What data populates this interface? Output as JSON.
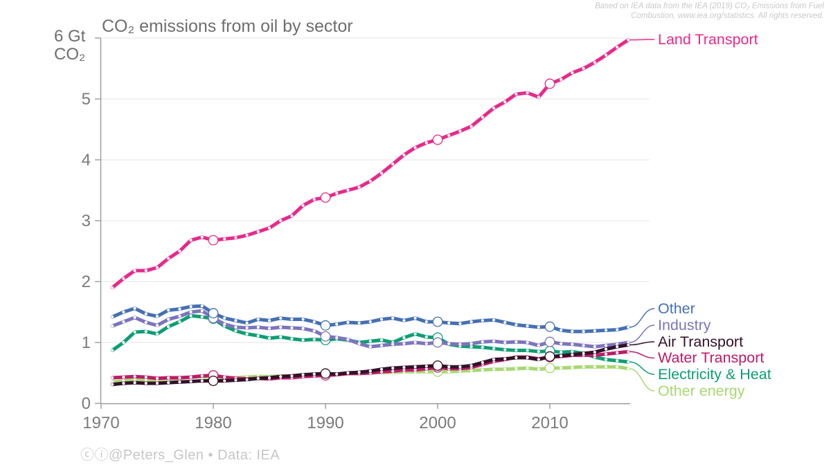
{
  "title": "CO₂ emissions from oil by sector",
  "y_axis": {
    "top_label_line1": "6 Gt",
    "top_label_line2": "CO₂"
  },
  "attribution": {
    "line1": "Based on IEA data from the IEA (2019) CO₂ Emissions from Fuel",
    "line2": "Combustion, www.iea.org/statistics. All rights reserved."
  },
  "credit": "ⓒⓘ@Peters_Glen  •  Data: IEA",
  "colors": {
    "title_text": "#6e6e6e",
    "tick_text": "#7a7a7a",
    "axis": "#999999",
    "grid": "#eaeaea",
    "attribution_text": "#c9c9c9",
    "credit_text": "#c6c6c6",
    "background": "#ffffff"
  },
  "chart_data": {
    "type": "line",
    "title": "CO₂ emissions from oil by sector",
    "ylabel": "Gt CO₂",
    "xlabel": "",
    "xlim": [
      1970,
      2017
    ],
    "ylim": [
      0,
      6
    ],
    "grid": "horizontal",
    "legend_position": "right-of-line-ends",
    "xticks": [
      1970,
      1980,
      1990,
      2000,
      2010
    ],
    "yticks": [
      0,
      1,
      2,
      3,
      4,
      5
    ],
    "grid_values": [
      1,
      2,
      3,
      4,
      5,
      6
    ],
    "marker_years": [
      1980,
      1990,
      2000,
      2010
    ],
    "x": [
      1971,
      1972,
      1973,
      1974,
      1975,
      1976,
      1977,
      1978,
      1979,
      1980,
      1981,
      1982,
      1983,
      1984,
      1985,
      1986,
      1987,
      1988,
      1989,
      1990,
      1991,
      1992,
      1993,
      1994,
      1995,
      1996,
      1997,
      1998,
      1999,
      2000,
      2001,
      2002,
      2003,
      2004,
      2005,
      2006,
      2007,
      2008,
      2009,
      2010,
      2011,
      2012,
      2013,
      2014,
      2015,
      2016,
      2017
    ],
    "series": [
      {
        "name": "Land Transport",
        "color": "#e62a8b",
        "values": [
          1.9,
          2.05,
          2.18,
          2.18,
          2.23,
          2.38,
          2.5,
          2.68,
          2.73,
          2.68,
          2.7,
          2.72,
          2.76,
          2.82,
          2.88,
          3.0,
          3.08,
          3.25,
          3.35,
          3.38,
          3.45,
          3.5,
          3.55,
          3.65,
          3.78,
          3.93,
          4.08,
          4.2,
          4.28,
          4.33,
          4.4,
          4.47,
          4.55,
          4.7,
          4.85,
          4.95,
          5.08,
          5.1,
          5.03,
          5.25,
          5.32,
          5.43,
          5.5,
          5.6,
          5.72,
          5.85,
          5.97
        ]
      },
      {
        "name": "Other",
        "color": "#4470b5",
        "values": [
          1.42,
          1.5,
          1.56,
          1.47,
          1.43,
          1.53,
          1.55,
          1.59,
          1.6,
          1.48,
          1.4,
          1.36,
          1.32,
          1.38,
          1.36,
          1.4,
          1.38,
          1.38,
          1.34,
          1.28,
          1.3,
          1.33,
          1.32,
          1.34,
          1.38,
          1.4,
          1.36,
          1.4,
          1.34,
          1.34,
          1.32,
          1.31,
          1.34,
          1.36,
          1.37,
          1.33,
          1.29,
          1.27,
          1.25,
          1.26,
          1.2,
          1.18,
          1.18,
          1.19,
          1.2,
          1.21,
          1.25
        ]
      },
      {
        "name": "Industry",
        "color": "#7c74bf",
        "values": [
          1.27,
          1.34,
          1.41,
          1.33,
          1.28,
          1.38,
          1.43,
          1.5,
          1.52,
          1.4,
          1.3,
          1.25,
          1.24,
          1.25,
          1.23,
          1.25,
          1.24,
          1.23,
          1.19,
          1.1,
          1.08,
          1.05,
          0.98,
          0.93,
          0.95,
          0.97,
          0.98,
          1.0,
          0.98,
          1.0,
          0.98,
          0.97,
          0.98,
          1.01,
          1.02,
          1.0,
          1.01,
          1.0,
          0.95,
          1.01,
          0.98,
          0.97,
          0.95,
          0.93,
          0.95,
          0.97,
          1.0
        ]
      },
      {
        "name": "Air Transport",
        "color": "#331029",
        "values": [
          0.31,
          0.33,
          0.34,
          0.33,
          0.33,
          0.34,
          0.35,
          0.36,
          0.37,
          0.37,
          0.37,
          0.38,
          0.39,
          0.41,
          0.42,
          0.44,
          0.45,
          0.47,
          0.48,
          0.49,
          0.48,
          0.5,
          0.51,
          0.53,
          0.56,
          0.58,
          0.59,
          0.6,
          0.61,
          0.62,
          0.6,
          0.6,
          0.62,
          0.67,
          0.72,
          0.73,
          0.75,
          0.75,
          0.72,
          0.77,
          0.78,
          0.8,
          0.82,
          0.84,
          0.89,
          0.93,
          0.96
        ]
      },
      {
        "name": "Water Transport",
        "color": "#be1a69",
        "values": [
          0.42,
          0.43,
          0.44,
          0.43,
          0.41,
          0.42,
          0.42,
          0.43,
          0.45,
          0.46,
          0.43,
          0.41,
          0.4,
          0.41,
          0.4,
          0.42,
          0.42,
          0.44,
          0.45,
          0.46,
          0.47,
          0.49,
          0.49,
          0.5,
          0.52,
          0.53,
          0.55,
          0.55,
          0.57,
          0.59,
          0.57,
          0.57,
          0.59,
          0.64,
          0.69,
          0.72,
          0.76,
          0.76,
          0.73,
          0.76,
          0.77,
          0.79,
          0.79,
          0.79,
          0.81,
          0.83,
          0.85
        ]
      },
      {
        "name": "Electricity & Heat",
        "color": "#0d9e72",
        "values": [
          0.87,
          1.0,
          1.17,
          1.18,
          1.14,
          1.26,
          1.34,
          1.44,
          1.42,
          1.39,
          1.27,
          1.19,
          1.14,
          1.11,
          1.07,
          1.09,
          1.06,
          1.04,
          1.05,
          1.04,
          1.06,
          1.04,
          1.0,
          1.02,
          1.04,
          1.0,
          1.08,
          1.14,
          1.09,
          1.08,
          0.97,
          0.94,
          0.93,
          0.92,
          0.9,
          0.88,
          0.87,
          0.87,
          0.85,
          0.86,
          0.84,
          0.85,
          0.82,
          0.76,
          0.72,
          0.7,
          0.68
        ]
      },
      {
        "name": "Other energy",
        "color": "#a7d871",
        "values": [
          0.35,
          0.37,
          0.39,
          0.39,
          0.38,
          0.4,
          0.41,
          0.43,
          0.44,
          0.42,
          0.42,
          0.42,
          0.43,
          0.44,
          0.44,
          0.45,
          0.45,
          0.46,
          0.47,
          0.48,
          0.48,
          0.49,
          0.49,
          0.5,
          0.51,
          0.51,
          0.52,
          0.52,
          0.52,
          0.52,
          0.52,
          0.53,
          0.54,
          0.55,
          0.56,
          0.56,
          0.57,
          0.58,
          0.56,
          0.58,
          0.58,
          0.59,
          0.6,
          0.6,
          0.6,
          0.6,
          0.57
        ]
      }
    ]
  }
}
